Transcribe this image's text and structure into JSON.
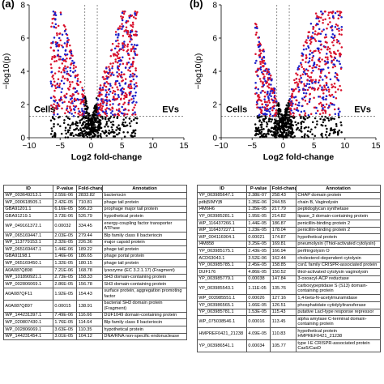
{
  "panels": [
    {
      "label": "(a)",
      "left_text": "Cells",
      "right_text": "EVs"
    },
    {
      "label": "(b)",
      "left_text": "Cells",
      "right_text": "EVs"
    }
  ],
  "chart_data": [
    {
      "type": "scatter",
      "xlabel": "Log2 fold-change",
      "ylabel": "−log10(p)",
      "xlim": [
        -10,
        15
      ],
      "ylim": [
        0,
        8
      ],
      "xticks": [
        "−10",
        "−5",
        "0",
        "5",
        "10",
        "15"
      ],
      "yticks": [
        "0",
        "2",
        "4",
        "6",
        "8"
      ],
      "threshold_lines": {
        "x": [
          -1,
          1
        ],
        "y": 1.3
      },
      "series_colors": {
        "not_significant": "#000000",
        "significant": "#d9102b",
        "annotated": "#1c1fc9"
      },
      "distribution": {
        "left_arm_x": [
          -6.5,
          -1
        ],
        "right_arm_x": [
          1,
          7.5
        ],
        "max_y": 7.6
      }
    },
    {
      "type": "scatter",
      "xlabel": "Log2 fold-change",
      "ylabel": "−log10(p)",
      "xlim": [
        -10,
        15
      ],
      "ylim": [
        0,
        8
      ],
      "xticks": [
        "−10",
        "−5",
        "0",
        "5",
        "10",
        "15"
      ],
      "yticks": [
        "0",
        "2",
        "4",
        "6",
        "8"
      ],
      "threshold_lines": {
        "x": [
          -1,
          1
        ],
        "y": 1.3
      },
      "series_colors": {
        "not_significant": "#000000",
        "significant": "#d9102b",
        "annotated": "#1c1fc9"
      },
      "distribution": {
        "left_arm_x": [
          -4.5,
          -1
        ],
        "right_arm_x": [
          1,
          9.5
        ],
        "max_y": 7.6
      }
    },
    {
      "type": "table",
      "columns": [
        "ID",
        "P-value",
        "Fold-change",
        "Annotation"
      ],
      "rows": [
        [
          "WP_003649213.1",
          "2.55E-06",
          "2833.82",
          "bacteriocin"
        ],
        [
          "WP_000618505.1",
          "2.42E-05",
          "710.81",
          "phage tail protein"
        ],
        [
          "GBA91201.1",
          "6.16E-05",
          "596.23",
          "prophage major tail protein"
        ],
        [
          "GBA91219.1",
          "3.73E-06",
          "526.79",
          "hypothetical protein"
        ],
        [
          "WP_049161372.1",
          "0.00032",
          "334.45",
          "energy-coupling factor transporter ATPase"
        ],
        [
          "WP_065169447.1",
          "2.03E-05",
          "279.44",
          "Blp family class II bacteriocin"
        ],
        [
          "WP_113779153.1",
          "2.32E-05",
          "226.36",
          "major capsid protein"
        ],
        [
          "WP_065169447.1",
          "1.44E-06",
          "189.22",
          "phage tail protein"
        ],
        [
          "GBA91198.1",
          "1.46E-06",
          "186.65",
          "phage portal protein"
        ],
        [
          "WP_065169450.1",
          "1.32E-05",
          "180.15",
          "phage tail protein"
        ],
        [
          "A0A087Q898",
          "7.21E-06",
          "168.78",
          "lysozyme (EC 3.2.1.17) (Fragment)"
        ],
        [
          "WP_101890921.1",
          "2.73E-05",
          "158.33",
          "SH3 domain-containing protein"
        ],
        [
          "WP_002806069.1",
          "2.86E-05",
          "156.78",
          "SH3 domain-containing protein"
        ],
        [
          "A0A087QF11",
          "1.92E-05",
          "154.43",
          "surface protein, aggregation promoting factor"
        ],
        [
          "A0A087Q897",
          "0.00015",
          "138.91",
          "bacterial SH3 domain protein (Fragment)"
        ],
        [
          "WP_144231397.1",
          "7.49E-06",
          "116.66",
          "DUF1049 domain-containing protein"
        ],
        [
          "WP_020807430.1",
          "1.76E-05",
          "114.64",
          "Blp family class II bacteriocin"
        ],
        [
          "WP_002806069.1",
          "3.63E-05",
          "110.35",
          "hypothetical protein"
        ],
        [
          "WP_144231454.1",
          "3.01E-05",
          "104.12",
          "DNA/RNA non-specific endonuclease"
        ]
      ]
    },
    {
      "type": "table",
      "columns": [
        "ID",
        "P-value",
        "Fold-change",
        "Annotation"
      ],
      "rows": [
        [
          "YP_003985647.1",
          "2.38E-07",
          "258.43",
          "CHAP domain protein"
        ],
        [
          "pdb|5IMY|B",
          "1.35E-06",
          "244.55",
          "chain B, Vaginolysin"
        ],
        [
          "I4M6H6",
          "1.35E-05",
          "217.79",
          "peptidoglycan synthetase"
        ],
        [
          "YP_003985281.1",
          "1.95E-05",
          "214.82",
          "lipase_3 domain-containing protein"
        ],
        [
          "WP_116437266.1",
          "1.44E-05",
          "186.87",
          "penicillin-binding protein 2"
        ],
        [
          "WP_116437227.1",
          "1.23E-05",
          "178.04",
          "penicillin-binding protein 2"
        ],
        [
          "WP_004116904.1",
          "0.00021",
          "174.87",
          "hypothetical protein"
        ],
        [
          "I4M858",
          "3.25E-05",
          "169.81",
          "pneumolysin (Thiol-activated cytolysin)"
        ],
        [
          "YP_003985175.1",
          "2.43E-05",
          "166.94",
          "perfringolysin O"
        ],
        [
          "ACD63043.1",
          "3.52E-06",
          "162.44",
          "cholesterol-dependent cytolysin"
        ],
        [
          "YP_003985785.1",
          "2.45E-05",
          "158.85",
          "csn1 family CRISPR-associated protein"
        ],
        [
          "DUF176",
          "4.86E-05",
          "150.52",
          "thiol-activated cytolysin vaginolysin"
        ],
        [
          "YP_003985779.1",
          "0.00038",
          "147.84",
          "3-oxoacyl-ACP reductase"
        ],
        [
          "YP_003985543.1",
          "1.11E-05",
          "135.76",
          "carboxypeptidase S (S13) domain-containing protein"
        ],
        [
          "WP_003985551.1",
          "0.00026",
          "127.16",
          "1,4-beta-N-acetylmuramidase"
        ],
        [
          "YP_003986565.1",
          "1.66E-05",
          "126.51",
          "phosphatidate cytidylyltransferase"
        ],
        [
          "YP_003985781.1",
          "1.53E-05",
          "115.43",
          "putative LacI-type response repressor"
        ],
        [
          "WP_075038546.1",
          "0.00016",
          "113.45",
          "alpha amylase C-terminal domain-containing protein"
        ],
        [
          "HMPREF0421_21238",
          "4.09E-05",
          "110.83",
          "hypothetical protein HMPREF0421_21238"
        ],
        [
          "YP_003986541.1",
          "0.00034",
          "105.77",
          "type I-E CRISPR-associated protein Cas5/CasD"
        ]
      ]
    }
  ]
}
